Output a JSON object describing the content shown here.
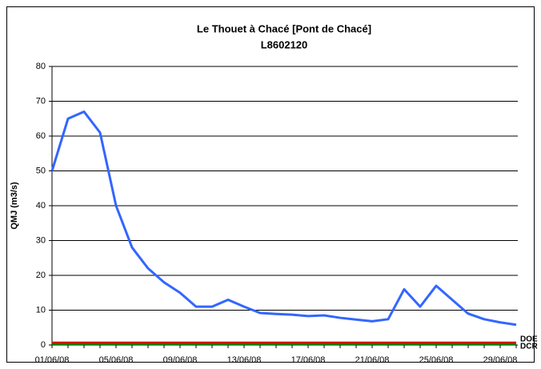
{
  "chart_data": {
    "type": "line",
    "title": "Le Thouet à Chacé [Pont de Chacé]",
    "subtitle": "L8602120",
    "y_label": "QMJ (m3/s)",
    "categories": [
      "01/06/08",
      null,
      null,
      null,
      "05/06/08",
      null,
      null,
      null,
      "09/06/08",
      null,
      null,
      null,
      "13/06/08",
      null,
      null,
      null,
      "17/06/08",
      null,
      null,
      null,
      "21/06/08",
      null,
      null,
      null,
      "25/06/08",
      null,
      null,
      null,
      "29/06/08",
      null
    ],
    "series": [
      {
        "name": "QMJ",
        "color": "#3366ff",
        "values": [
          50,
          65,
          67,
          61,
          40,
          28,
          22,
          18,
          15,
          11,
          11,
          13,
          11,
          9.2,
          8.9,
          8.7,
          8.3,
          8.5,
          7.8,
          7.3,
          6.8,
          7.4,
          16,
          11,
          17,
          13,
          9,
          7.4,
          6.5,
          5.8
        ]
      },
      {
        "name": "DOE",
        "color": "#ff0000",
        "values": [
          0.7,
          0.7,
          0.7,
          0.7,
          0.7,
          0.7,
          0.7,
          0.7,
          0.7,
          0.7,
          0.7,
          0.7,
          0.7,
          0.7,
          0.7,
          0.7,
          0.7,
          0.7,
          0.7,
          0.7,
          0.7,
          0.7,
          0.7,
          0.7,
          0.7,
          0.7,
          0.7,
          0.7,
          0.7,
          0.7
        ]
      },
      {
        "name": "DCR",
        "color": "#008000",
        "values": [
          0.3,
          0.3,
          0.3,
          0.3,
          0.3,
          0.3,
          0.3,
          0.3,
          0.3,
          0.3,
          0.3,
          0.3,
          0.3,
          0.3,
          0.3,
          0.3,
          0.3,
          0.3,
          0.3,
          0.3,
          0.3,
          0.3,
          0.3,
          0.3,
          0.3,
          0.3,
          0.3,
          0.3,
          0.3,
          0.3
        ]
      }
    ],
    "ylim": [
      0,
      80
    ],
    "yticks": [
      0,
      10,
      20,
      30,
      40,
      50,
      60,
      70,
      80
    ],
    "grid": true
  }
}
